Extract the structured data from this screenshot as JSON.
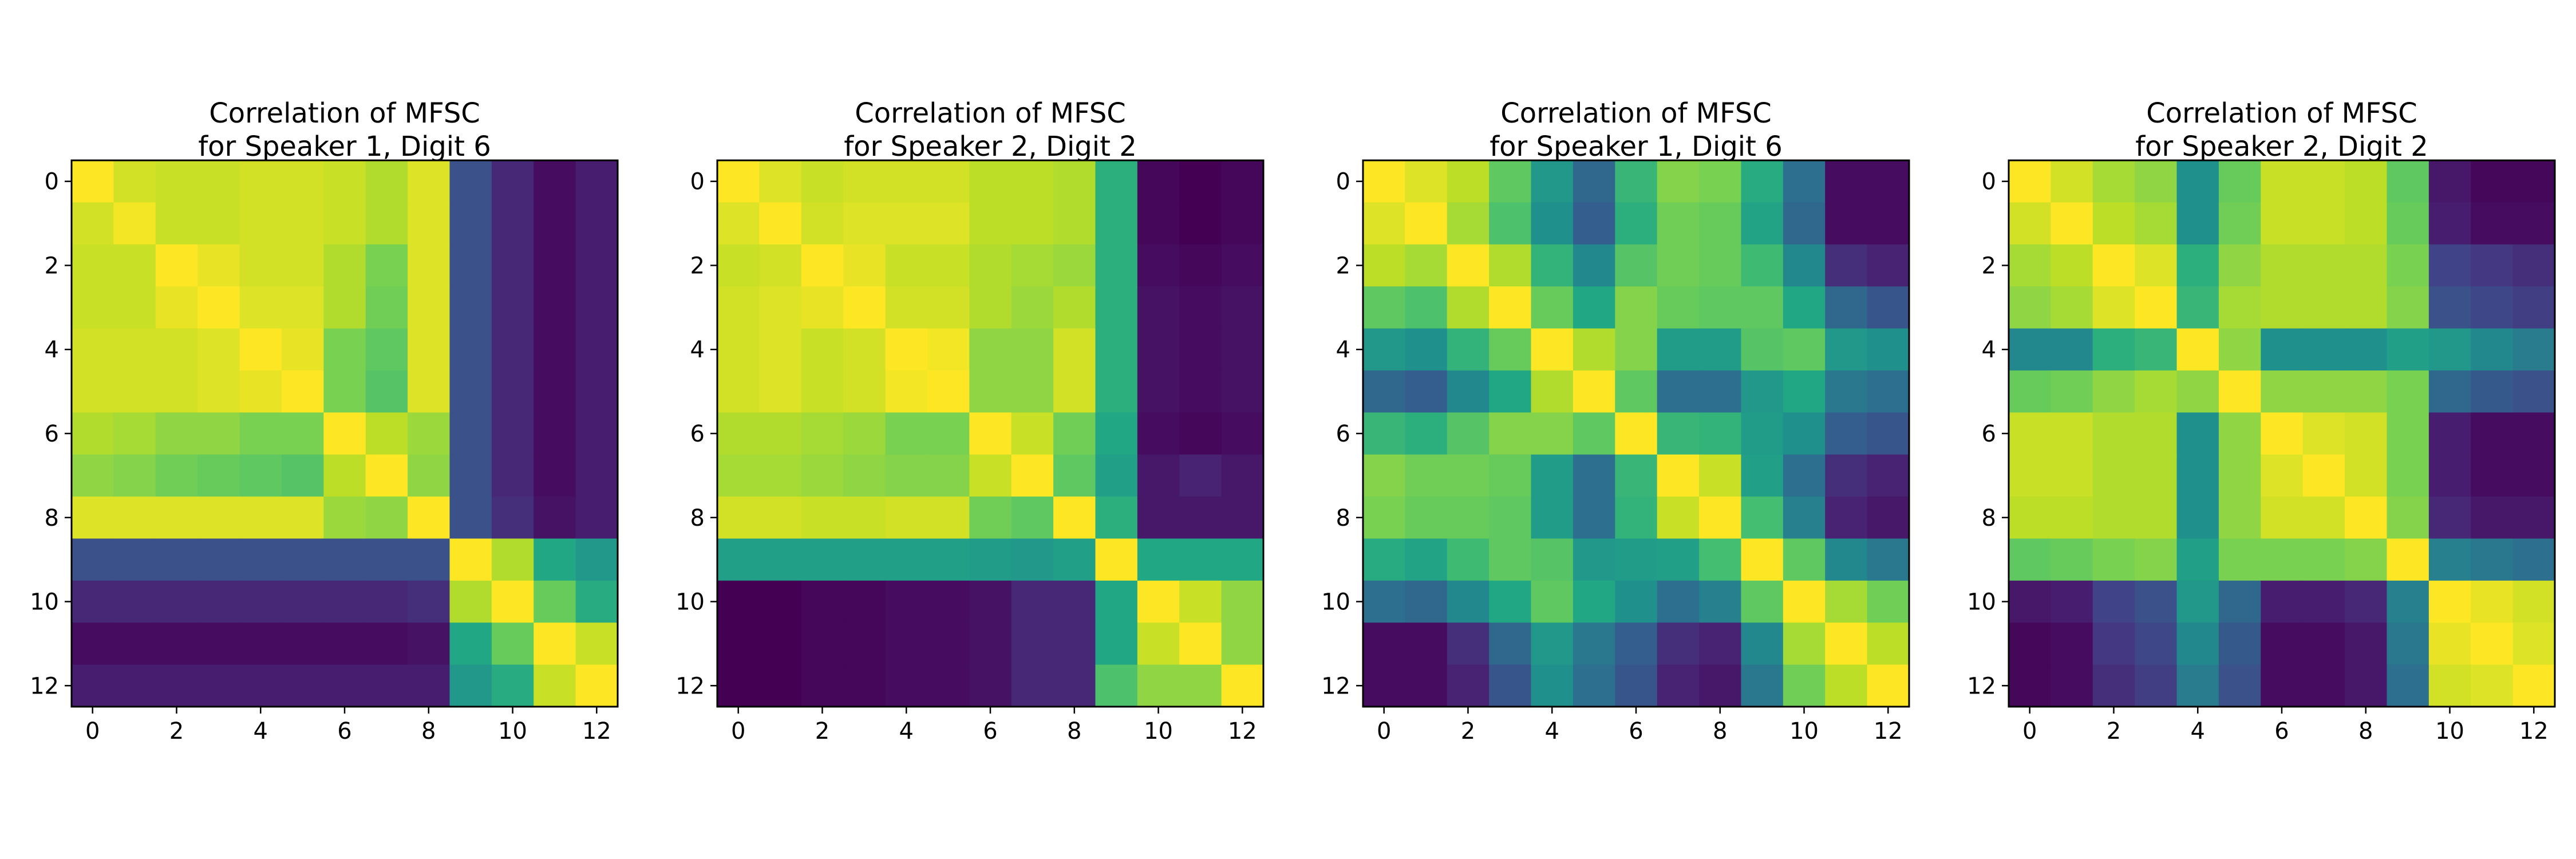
{
  "chart_data": [
    {
      "type": "heatmap",
      "title": "Correlation of MFSC\nfor Speaker 1, Digit 6",
      "x_ticks": [
        "0",
        "2",
        "4",
        "6",
        "8",
        "10",
        "12"
      ],
      "y_ticks": [
        "0",
        "2",
        "4",
        "6",
        "8",
        "10",
        "12"
      ],
      "colormap": "viridis",
      "value_range": [
        0.4,
        1.0
      ],
      "xlim": [
        -0.5,
        12.5
      ],
      "ylim": [
        12.5,
        -0.5
      ],
      "matrix": [
        [
          1.0,
          0.96,
          0.95,
          0.95,
          0.96,
          0.96,
          0.95,
          0.93,
          0.97,
          0.55,
          0.47,
          0.42,
          0.45
        ],
        [
          0.96,
          0.99,
          0.95,
          0.95,
          0.96,
          0.96,
          0.95,
          0.93,
          0.97,
          0.55,
          0.47,
          0.42,
          0.45
        ],
        [
          0.95,
          0.95,
          1.0,
          0.98,
          0.96,
          0.96,
          0.93,
          0.88,
          0.97,
          0.55,
          0.47,
          0.42,
          0.45
        ],
        [
          0.95,
          0.95,
          0.98,
          1.0,
          0.97,
          0.97,
          0.93,
          0.87,
          0.97,
          0.55,
          0.47,
          0.42,
          0.45
        ],
        [
          0.96,
          0.96,
          0.96,
          0.97,
          1.0,
          0.98,
          0.88,
          0.85,
          0.97,
          0.55,
          0.47,
          0.42,
          0.45
        ],
        [
          0.96,
          0.96,
          0.96,
          0.97,
          0.98,
          1.0,
          0.88,
          0.84,
          0.97,
          0.55,
          0.47,
          0.42,
          0.45
        ],
        [
          0.93,
          0.92,
          0.9,
          0.9,
          0.88,
          0.88,
          1.0,
          0.94,
          0.91,
          0.55,
          0.47,
          0.42,
          0.45
        ],
        [
          0.9,
          0.89,
          0.87,
          0.86,
          0.85,
          0.84,
          0.94,
          1.0,
          0.9,
          0.55,
          0.47,
          0.42,
          0.45
        ],
        [
          0.97,
          0.97,
          0.97,
          0.97,
          0.97,
          0.97,
          0.91,
          0.9,
          1.0,
          0.55,
          0.48,
          0.43,
          0.45
        ],
        [
          0.55,
          0.55,
          0.55,
          0.55,
          0.55,
          0.55,
          0.55,
          0.55,
          0.55,
          1.0,
          0.93,
          0.76,
          0.72
        ],
        [
          0.47,
          0.47,
          0.47,
          0.47,
          0.47,
          0.47,
          0.47,
          0.47,
          0.48,
          0.93,
          1.0,
          0.86,
          0.77
        ],
        [
          0.42,
          0.42,
          0.42,
          0.42,
          0.42,
          0.42,
          0.42,
          0.42,
          0.43,
          0.76,
          0.86,
          1.0,
          0.95
        ],
        [
          0.45,
          0.45,
          0.45,
          0.45,
          0.45,
          0.45,
          0.45,
          0.45,
          0.45,
          0.72,
          0.77,
          0.95,
          1.0
        ]
      ]
    },
    {
      "type": "heatmap",
      "title": "Correlation of MFSC\nfor Speaker 2, Digit 2",
      "x_ticks": [
        "0",
        "2",
        "4",
        "6",
        "8",
        "10",
        "12"
      ],
      "y_ticks": [
        "0",
        "2",
        "4",
        "6",
        "8",
        "10",
        "12"
      ],
      "colormap": "viridis",
      "value_range": [
        0.4,
        1.0
      ],
      "xlim": [
        -0.5,
        12.5
      ],
      "ylim": [
        12.5,
        -0.5
      ],
      "matrix": [
        [
          1.0,
          0.97,
          0.95,
          0.96,
          0.96,
          0.96,
          0.94,
          0.94,
          0.93,
          0.78,
          0.41,
          0.4,
          0.41
        ],
        [
          0.97,
          1.0,
          0.96,
          0.97,
          0.97,
          0.97,
          0.94,
          0.94,
          0.93,
          0.78,
          0.41,
          0.4,
          0.41
        ],
        [
          0.95,
          0.96,
          1.0,
          0.98,
          0.95,
          0.95,
          0.93,
          0.92,
          0.91,
          0.78,
          0.42,
          0.41,
          0.42
        ],
        [
          0.96,
          0.97,
          0.98,
          1.0,
          0.96,
          0.96,
          0.93,
          0.91,
          0.93,
          0.78,
          0.43,
          0.42,
          0.43
        ],
        [
          0.96,
          0.97,
          0.95,
          0.96,
          1.0,
          0.99,
          0.9,
          0.9,
          0.96,
          0.78,
          0.43,
          0.42,
          0.43
        ],
        [
          0.96,
          0.97,
          0.95,
          0.96,
          0.99,
          1.0,
          0.9,
          0.9,
          0.96,
          0.78,
          0.43,
          0.42,
          0.43
        ],
        [
          0.93,
          0.93,
          0.92,
          0.91,
          0.88,
          0.88,
          1.0,
          0.95,
          0.87,
          0.76,
          0.42,
          0.41,
          0.42
        ],
        [
          0.92,
          0.92,
          0.91,
          0.9,
          0.89,
          0.89,
          0.95,
          1.0,
          0.85,
          0.74,
          0.44,
          0.46,
          0.44
        ],
        [
          0.96,
          0.96,
          0.95,
          0.95,
          0.96,
          0.96,
          0.87,
          0.85,
          1.0,
          0.78,
          0.44,
          0.44,
          0.44
        ],
        [
          0.74,
          0.74,
          0.74,
          0.74,
          0.74,
          0.74,
          0.73,
          0.72,
          0.74,
          1.0,
          0.76,
          0.76,
          0.76
        ],
        [
          0.4,
          0.4,
          0.41,
          0.41,
          0.42,
          0.42,
          0.43,
          0.47,
          0.47,
          0.76,
          1.0,
          0.95,
          0.9
        ],
        [
          0.4,
          0.4,
          0.41,
          0.41,
          0.42,
          0.42,
          0.43,
          0.47,
          0.47,
          0.76,
          0.95,
          1.0,
          0.9
        ],
        [
          0.4,
          0.4,
          0.41,
          0.41,
          0.42,
          0.42,
          0.43,
          0.47,
          0.47,
          0.83,
          0.9,
          0.9,
          1.0
        ]
      ]
    },
    {
      "type": "heatmap",
      "title": "Correlation of MFSC\nfor Speaker 1, Digit 6",
      "x_ticks": [
        "0",
        "2",
        "4",
        "6",
        "8",
        "10",
        "12"
      ],
      "y_ticks": [
        "0",
        "2",
        "4",
        "6",
        "8",
        "10",
        "12"
      ],
      "colormap": "viridis",
      "value_range": [
        0.4,
        1.0
      ],
      "xlim": [
        -0.5,
        12.5
      ],
      "ylim": [
        12.5,
        -0.5
      ],
      "matrix": [
        [
          1.0,
          0.97,
          0.94,
          0.85,
          0.72,
          0.6,
          0.8,
          0.89,
          0.88,
          0.77,
          0.62,
          0.42,
          0.42
        ],
        [
          0.97,
          1.0,
          0.92,
          0.83,
          0.7,
          0.58,
          0.78,
          0.87,
          0.86,
          0.75,
          0.6,
          0.42,
          0.42
        ],
        [
          0.94,
          0.92,
          1.0,
          0.93,
          0.79,
          0.68,
          0.84,
          0.87,
          0.86,
          0.81,
          0.68,
          0.48,
          0.46
        ],
        [
          0.85,
          0.83,
          0.93,
          1.0,
          0.86,
          0.76,
          0.89,
          0.86,
          0.85,
          0.85,
          0.76,
          0.6,
          0.56
        ],
        [
          0.72,
          0.7,
          0.79,
          0.86,
          1.0,
          0.93,
          0.89,
          0.73,
          0.73,
          0.84,
          0.85,
          0.72,
          0.7
        ],
        [
          0.6,
          0.58,
          0.68,
          0.76,
          0.93,
          1.0,
          0.85,
          0.62,
          0.62,
          0.72,
          0.76,
          0.64,
          0.62
        ],
        [
          0.8,
          0.78,
          0.84,
          0.89,
          0.89,
          0.85,
          1.0,
          0.8,
          0.79,
          0.73,
          0.7,
          0.58,
          0.56
        ],
        [
          0.89,
          0.87,
          0.87,
          0.86,
          0.73,
          0.62,
          0.8,
          1.0,
          0.95,
          0.74,
          0.62,
          0.48,
          0.46
        ],
        [
          0.88,
          0.86,
          0.86,
          0.85,
          0.73,
          0.62,
          0.79,
          0.95,
          1.0,
          0.82,
          0.66,
          0.46,
          0.44
        ],
        [
          0.77,
          0.75,
          0.81,
          0.85,
          0.84,
          0.72,
          0.73,
          0.74,
          0.82,
          1.0,
          0.85,
          0.68,
          0.64
        ],
        [
          0.62,
          0.6,
          0.68,
          0.76,
          0.85,
          0.76,
          0.7,
          0.62,
          0.66,
          0.85,
          1.0,
          0.92,
          0.87
        ],
        [
          0.42,
          0.42,
          0.48,
          0.6,
          0.72,
          0.64,
          0.58,
          0.48,
          0.46,
          0.68,
          0.92,
          1.0,
          0.94
        ],
        [
          0.42,
          0.42,
          0.46,
          0.56,
          0.7,
          0.62,
          0.56,
          0.46,
          0.44,
          0.64,
          0.87,
          0.94,
          1.0
        ]
      ]
    },
    {
      "type": "heatmap",
      "title": "Correlation of MFSC\nfor Speaker 2, Digit 2",
      "x_ticks": [
        "0",
        "2",
        "4",
        "6",
        "8",
        "10",
        "12"
      ],
      "y_ticks": [
        "0",
        "2",
        "4",
        "6",
        "8",
        "10",
        "12"
      ],
      "colormap": "viridis",
      "value_range": [
        0.4,
        1.0
      ],
      "xlim": [
        -0.5,
        12.5
      ],
      "ylim": [
        12.5,
        -0.5
      ],
      "matrix": [
        [
          1.0,
          0.96,
          0.92,
          0.9,
          0.7,
          0.86,
          0.95,
          0.95,
          0.94,
          0.85,
          0.44,
          0.41,
          0.41
        ],
        [
          0.96,
          1.0,
          0.94,
          0.92,
          0.7,
          0.87,
          0.95,
          0.95,
          0.94,
          0.86,
          0.45,
          0.42,
          0.42
        ],
        [
          0.92,
          0.94,
          1.0,
          0.97,
          0.78,
          0.9,
          0.93,
          0.93,
          0.93,
          0.88,
          0.52,
          0.5,
          0.48
        ],
        [
          0.9,
          0.92,
          0.97,
          1.0,
          0.8,
          0.92,
          0.93,
          0.93,
          0.93,
          0.89,
          0.55,
          0.53,
          0.51
        ],
        [
          0.68,
          0.68,
          0.78,
          0.8,
          1.0,
          0.9,
          0.7,
          0.7,
          0.7,
          0.74,
          0.72,
          0.68,
          0.65
        ],
        [
          0.86,
          0.87,
          0.9,
          0.92,
          0.9,
          1.0,
          0.9,
          0.9,
          0.9,
          0.88,
          0.6,
          0.57,
          0.55
        ],
        [
          0.95,
          0.95,
          0.93,
          0.93,
          0.7,
          0.9,
          1.0,
          0.97,
          0.96,
          0.88,
          0.45,
          0.42,
          0.42
        ],
        [
          0.95,
          0.95,
          0.93,
          0.93,
          0.7,
          0.9,
          0.97,
          1.0,
          0.96,
          0.88,
          0.45,
          0.42,
          0.42
        ],
        [
          0.94,
          0.94,
          0.93,
          0.93,
          0.7,
          0.9,
          0.96,
          0.96,
          1.0,
          0.89,
          0.47,
          0.44,
          0.44
        ],
        [
          0.85,
          0.86,
          0.88,
          0.89,
          0.74,
          0.88,
          0.88,
          0.88,
          0.89,
          1.0,
          0.66,
          0.64,
          0.62
        ],
        [
          0.44,
          0.45,
          0.52,
          0.55,
          0.72,
          0.6,
          0.45,
          0.45,
          0.47,
          0.66,
          1.0,
          0.98,
          0.96
        ],
        [
          0.41,
          0.42,
          0.5,
          0.53,
          0.68,
          0.57,
          0.42,
          0.42,
          0.44,
          0.64,
          0.98,
          1.0,
          0.97
        ],
        [
          0.41,
          0.42,
          0.48,
          0.51,
          0.65,
          0.55,
          0.42,
          0.42,
          0.44,
          0.62,
          0.96,
          0.97,
          1.0
        ]
      ]
    }
  ]
}
